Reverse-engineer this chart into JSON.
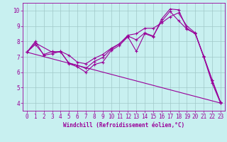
{
  "xlabel": "Windchill (Refroidissement éolien,°C)",
  "xlim": [
    -0.5,
    23.5
  ],
  "ylim": [
    3.5,
    10.5
  ],
  "xticks": [
    0,
    1,
    2,
    3,
    4,
    5,
    6,
    7,
    8,
    9,
    10,
    11,
    12,
    13,
    14,
    15,
    16,
    17,
    18,
    19,
    20,
    21,
    22,
    23
  ],
  "yticks": [
    4,
    5,
    6,
    7,
    8,
    9,
    10
  ],
  "background_color": "#c8f0f0",
  "grid_color": "#a0c8c8",
  "line_color": "#990099",
  "series1_x": [
    0,
    1,
    2,
    3,
    4,
    5,
    6,
    7,
    8,
    9,
    10,
    11,
    12,
    13,
    14,
    15,
    16,
    17,
    18,
    19,
    20,
    21,
    22,
    23
  ],
  "series1_y": [
    7.3,
    8.0,
    7.1,
    7.2,
    7.35,
    6.55,
    6.35,
    6.0,
    6.5,
    6.65,
    7.4,
    7.75,
    8.3,
    7.35,
    8.5,
    8.3,
    9.45,
    10.1,
    10.05,
    8.85,
    8.5,
    7.0,
    5.3,
    4.0
  ],
  "series2_x": [
    0,
    1,
    2,
    3,
    4,
    5,
    6,
    7,
    8,
    9,
    10,
    11,
    12,
    13,
    14,
    15,
    16,
    17,
    18,
    19,
    20,
    21,
    22,
    23
  ],
  "series2_y": [
    7.3,
    7.8,
    7.15,
    7.35,
    7.3,
    6.6,
    6.45,
    6.25,
    6.7,
    6.95,
    7.5,
    7.85,
    8.35,
    8.1,
    8.55,
    8.35,
    9.3,
    9.95,
    9.35,
    8.8,
    8.5,
    7.05,
    5.5,
    4.05
  ],
  "series3_x": [
    0,
    1,
    3,
    4,
    5,
    6,
    7,
    8,
    9,
    10,
    11,
    12,
    13,
    14,
    15,
    16,
    17,
    18,
    19,
    20,
    21,
    22,
    23
  ],
  "series3_y": [
    7.3,
    7.9,
    7.3,
    7.35,
    7.1,
    6.65,
    6.55,
    6.9,
    7.15,
    7.55,
    7.85,
    8.4,
    8.5,
    8.85,
    8.85,
    9.2,
    9.6,
    9.85,
    9.0,
    8.55,
    7.0,
    5.5,
    4.05
  ],
  "series4_x": [
    0,
    23
  ],
  "series4_y": [
    7.3,
    4.0
  ],
  "tick_fontsize": 5.5,
  "xlabel_fontsize": 5.5
}
